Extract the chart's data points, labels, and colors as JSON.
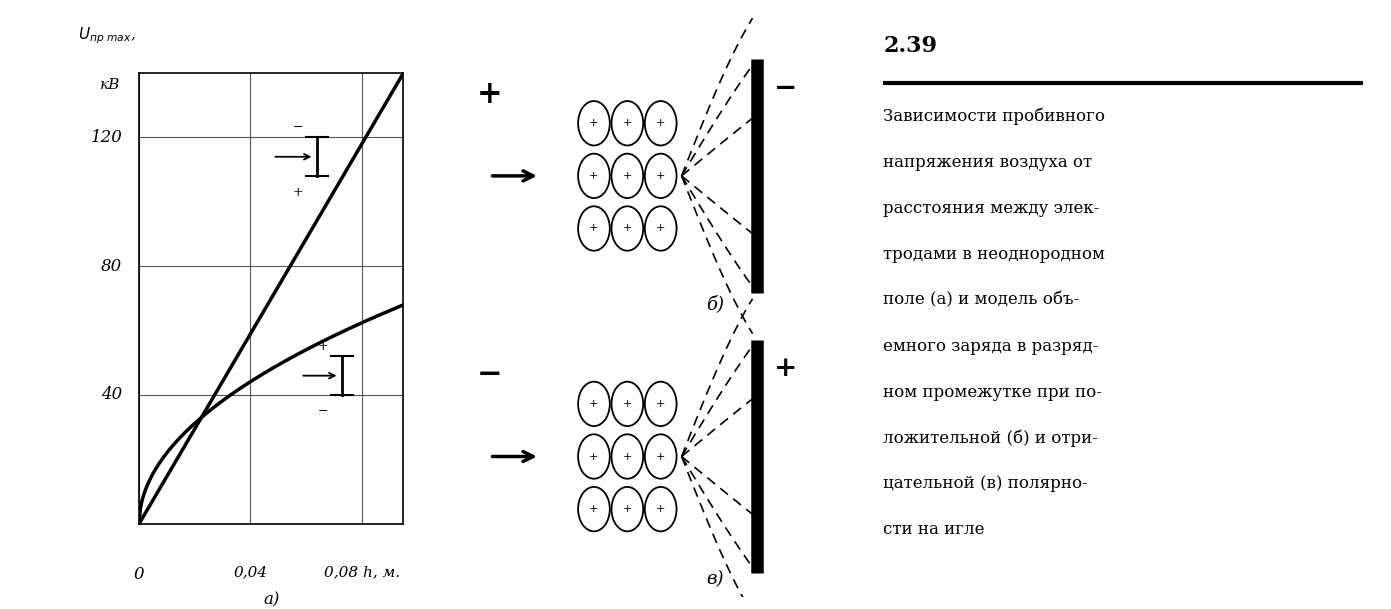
{
  "bg_color": "#ffffff",
  "line_color": "#000000",
  "ytick_labels": [
    "",
    "40",
    "80",
    "120"
  ],
  "yticks": [
    0,
    40,
    80,
    120
  ],
  "xticks": [
    0,
    0.04,
    0.08
  ],
  "ylim": [
    0,
    140
  ],
  "xlim": [
    0,
    0.095
  ],
  "label_number": "2.39",
  "caption_lines": [
    "Зависимости пробивного",
    "напряжения воздуха от",
    "расстояния между элек-",
    "тродами в неоднородном",
    "поле (а) и модель объ-",
    "емного заряда в разряд-",
    "ном промежутке при по-",
    "ложительной (б) и отри-",
    "цательной (в) полярно-",
    "сти на игле"
  ]
}
